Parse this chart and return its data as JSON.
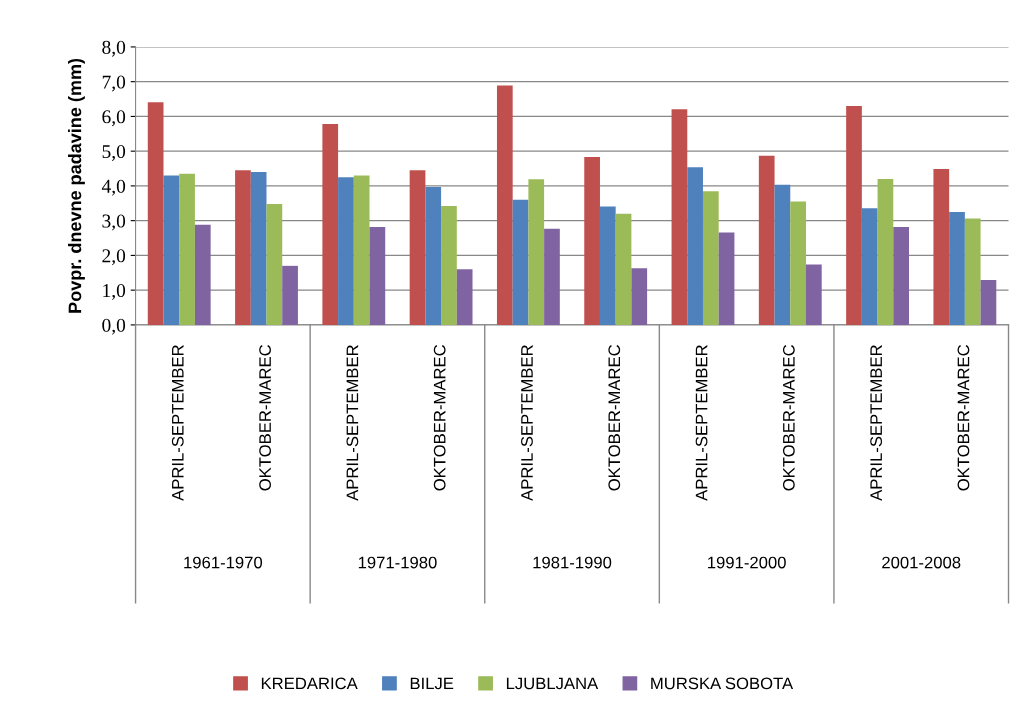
{
  "chart_data": {
    "type": "bar",
    "ylabel": "Povpr. dnevne padavine (mm)",
    "categories": [
      "APRIL-SEPTEMBER",
      "OKTOBER-MAREC",
      "APRIL-SEPTEMBER",
      "OKTOBER-MAREC",
      "APRIL-SEPTEMBER",
      "OKTOBER-MAREC",
      "APRIL-SEPTEMBER",
      "OKTOBER-MAREC",
      "APRIL-SEPTEMBER",
      "OKTOBER-MAREC"
    ],
    "series": [
      {
        "name": "KREDARICA",
        "color": "#c0504d",
        "values": [
          6.41,
          4.45,
          5.78,
          4.45,
          6.89,
          4.83,
          6.21,
          4.87,
          6.3,
          4.49
        ]
      },
      {
        "name": "BILJE",
        "color": "#4f81bd",
        "values": [
          4.3,
          4.4,
          4.25,
          3.97,
          3.6,
          3.41,
          4.54,
          4.03,
          3.36,
          3.25
        ]
      },
      {
        "name": "LJUBLJANA",
        "color": "#9bbb59",
        "values": [
          4.35,
          3.48,
          4.3,
          3.42,
          4.19,
          3.2,
          3.85,
          3.55,
          4.2,
          3.06
        ]
      },
      {
        "name": "MURSKA SOBOTA",
        "color": "#8064a2",
        "values": [
          2.88,
          1.7,
          2.82,
          1.6,
          2.77,
          1.63,
          2.66,
          1.74,
          2.82,
          1.29
        ]
      }
    ],
    "annotations": [
      "1961-1970",
      "1971-1980",
      "1981-1990",
      "1991-2000",
      "2001-2008"
    ],
    "ylim": [
      0,
      8
    ],
    "yticks": [
      {
        "value": 0,
        "label": "0,0"
      },
      {
        "value": 1,
        "label": "1,0"
      },
      {
        "value": 2,
        "label": "2,0"
      },
      {
        "value": 3,
        "label": "3,0"
      },
      {
        "value": 4,
        "label": "4,0"
      },
      {
        "value": 5,
        "label": "5,0"
      },
      {
        "value": 6,
        "label": "6,0"
      },
      {
        "value": 7,
        "label": "7,0"
      },
      {
        "value": 8,
        "label": "8,0"
      }
    ],
    "grid": "y",
    "legend": "bottom"
  }
}
